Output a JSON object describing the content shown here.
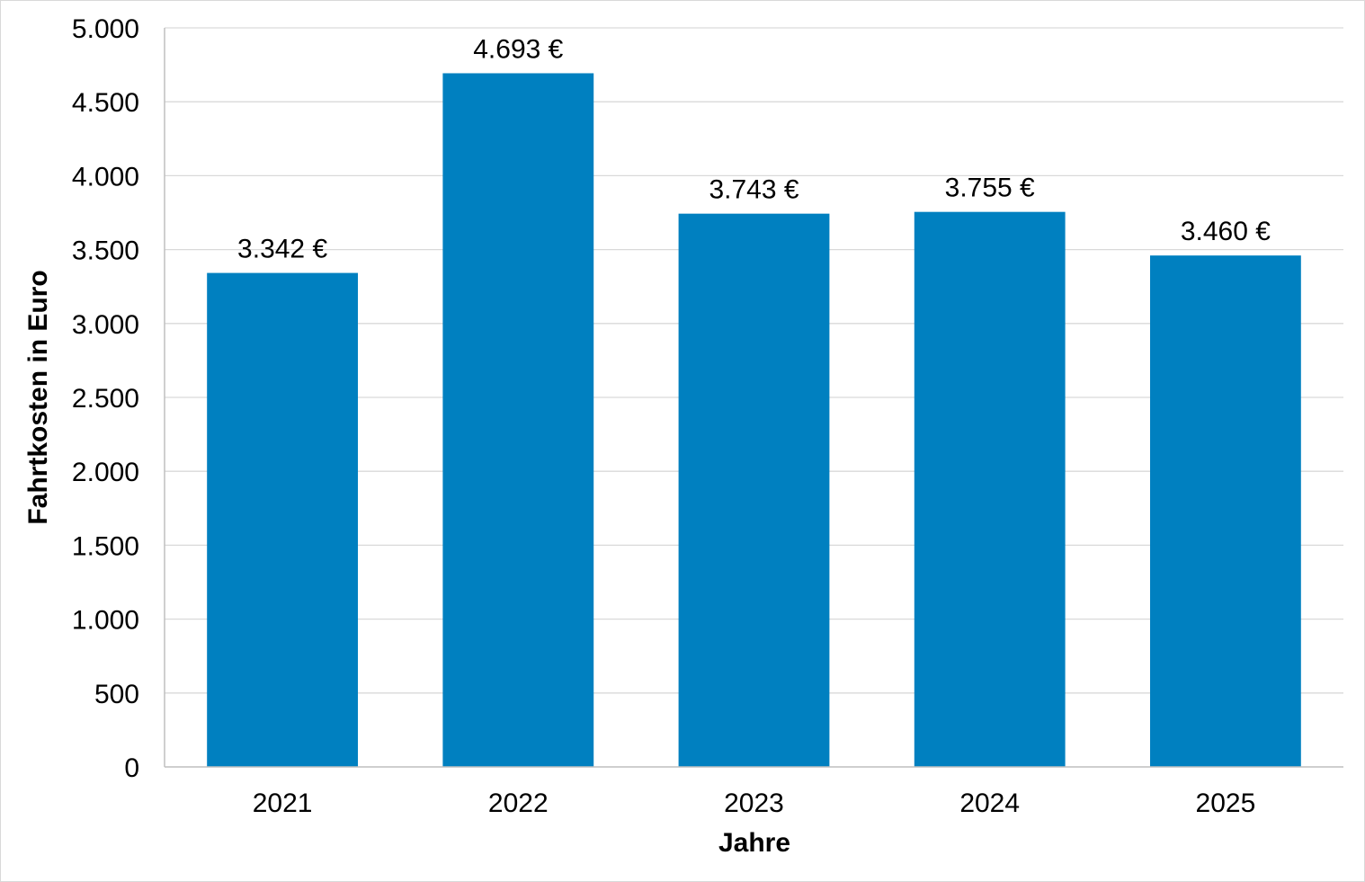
{
  "chart_data": {
    "type": "bar",
    "title": "",
    "xlabel": "Jahre",
    "ylabel": "Fahrtkosten in Euro",
    "categories": [
      "2021",
      "2022",
      "2023",
      "2024",
      "2025"
    ],
    "values": [
      3342,
      4693,
      3743,
      3755,
      3460
    ],
    "data_labels": [
      "3.342 €",
      "4.693 €",
      "3.743 €",
      "3.755 €",
      "3.460 €"
    ],
    "ylim": [
      0,
      5000
    ],
    "yticks": [
      0,
      500,
      1000,
      1500,
      2000,
      2500,
      3000,
      3500,
      4000,
      4500,
      5000
    ],
    "ytick_labels": [
      "0",
      "500",
      "1.000",
      "1.500",
      "2.000",
      "2.500",
      "3.000",
      "3.500",
      "4.000",
      "4.500",
      "5.000"
    ],
    "grid": true,
    "legend": "none",
    "bar_color": "#0080C0",
    "grid_color": "#d9d9d9",
    "axis_color": "#bfbfbf"
  }
}
